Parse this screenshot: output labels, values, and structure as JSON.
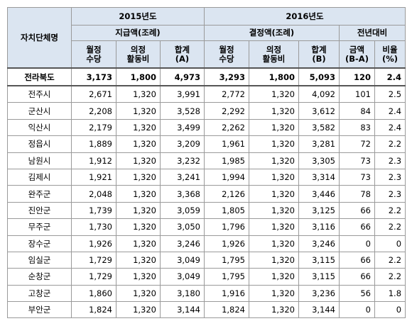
{
  "table": {
    "header": {
      "name": "자치단체명",
      "years": [
        "2015년도",
        "2016년도"
      ],
      "groups": [
        "지급액(조례)",
        "결정액(조례)",
        "전년대비"
      ],
      "columns": [
        "월정\n수당",
        "의정\n활동비",
        "합계\n(A)",
        "월정\n수당",
        "의정\n활동비",
        "합계\n(B)",
        "금액\n(B-A)",
        "비율\n(%)"
      ]
    },
    "rows": [
      [
        "전라북도",
        "3,173",
        "1,800",
        "4,973",
        "3,293",
        "1,800",
        "5,093",
        "120",
        "2.4"
      ],
      [
        "전주시",
        "2,671",
        "1,320",
        "3,991",
        "2,772",
        "1,320",
        "4,092",
        "101",
        "2.5"
      ],
      [
        "군산시",
        "2,208",
        "1,320",
        "3,528",
        "2,292",
        "1,320",
        "3,612",
        "84",
        "2.4"
      ],
      [
        "익산시",
        "2,179",
        "1,320",
        "3,499",
        "2,262",
        "1,320",
        "3,582",
        "83",
        "2.4"
      ],
      [
        "정읍시",
        "1,889",
        "1,320",
        "3,209",
        "1,961",
        "1,320",
        "3,281",
        "72",
        "2.2"
      ],
      [
        "남원시",
        "1,912",
        "1,320",
        "3,232",
        "1,985",
        "1,320",
        "3,305",
        "73",
        "2.3"
      ],
      [
        "김제시",
        "1,921",
        "1,320",
        "3,241",
        "1,994",
        "1,320",
        "3,314",
        "73",
        "2.3"
      ],
      [
        "완주군",
        "2,048",
        "1,320",
        "3,368",
        "2,126",
        "1,320",
        "3,446",
        "78",
        "2.3"
      ],
      [
        "진안군",
        "1,739",
        "1,320",
        "3,059",
        "1,805",
        "1,320",
        "3,125",
        "66",
        "2.2"
      ],
      [
        "무주군",
        "1,730",
        "1,320",
        "3,050",
        "1,796",
        "1,320",
        "3,116",
        "66",
        "2.2"
      ],
      [
        "장수군",
        "1,926",
        "1,320",
        "3,246",
        "1,926",
        "1,320",
        "3,246",
        "0",
        "0"
      ],
      [
        "임실군",
        "1,729",
        "1,320",
        "3,049",
        "1,795",
        "1,320",
        "3,115",
        "66",
        "2.2"
      ],
      [
        "순창군",
        "1,729",
        "1,320",
        "3,049",
        "1,795",
        "1,320",
        "3,115",
        "66",
        "2.2"
      ],
      [
        "고창군",
        "1,860",
        "1,320",
        "3,180",
        "1,916",
        "1,320",
        "3,236",
        "56",
        "1.8"
      ],
      [
        "부안군",
        "1,824",
        "1,320",
        "3,144",
        "1,824",
        "1,320",
        "3,144",
        "0",
        "0"
      ]
    ]
  }
}
